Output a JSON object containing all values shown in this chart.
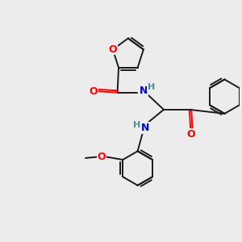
{
  "bg_color": "#ececec",
  "bond_color": "#1a1a1a",
  "oxygen_color": "#ff0000",
  "nitrogen_color": "#0000cd",
  "nitrogen_h_color": "#4a9090",
  "line_width": 1.4,
  "fig_width": 3.0,
  "fig_height": 3.0,
  "dpi": 100,
  "xlim": [
    0,
    10
  ],
  "ylim": [
    0,
    10
  ]
}
